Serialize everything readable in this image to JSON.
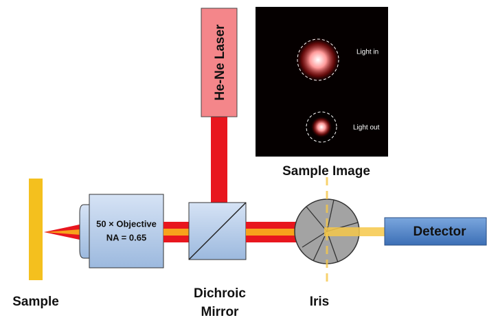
{
  "laser": {
    "label": "He-Ne Laser"
  },
  "sample_image": {
    "title": "Sample Image",
    "annotations": [
      "Light in",
      "Light out"
    ]
  },
  "objective": {
    "lines": [
      "50 × Objective",
      "NA = 0.65"
    ]
  },
  "detector": {
    "label": "Detector"
  },
  "components": {
    "sample": "Sample",
    "dichroic_mirror": [
      "Dichroic",
      "Mirror"
    ],
    "iris": "Iris"
  }
}
